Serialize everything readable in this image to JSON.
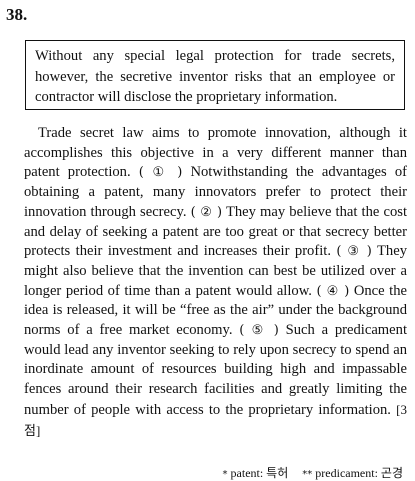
{
  "question": {
    "number": "38."
  },
  "given_sentence": "Without any special legal protection for trade secrets, however, the secretive inventor risks that an employee or contractor will disclose the proprietary information.",
  "passage": {
    "segments": [
      "Trade secret law aims to promote innovation, although it accomplishes this objective in a very different manner than patent protection. ",
      " Notwithstanding the advantages of obtaining a patent, many innovators prefer to protect their innovation through secrecy. ",
      " They may believe that the cost and delay of seeking a patent are too great or that secrecy better protects their investment and increases their profit. ",
      " They might also believe that the invention can best be utilized over a longer period of time than a patent would allow. ",
      " Once the idea is released, it will be “free as the air” under the background norms of a free market economy. ",
      " Such a predicament would lead any inventor seeking to rely upon secrecy to spend an inordinate amount of resources building high and impassable fences around their research facilities and greatly limiting the number of people with access to the proprietary information. "
    ],
    "markers": [
      "( ① )",
      "( ② )",
      "( ③ )",
      "( ④ )",
      "( ⑤ )"
    ],
    "points": "[3점]"
  },
  "footnotes": [
    {
      "mark": "*",
      "text": "patent: 특허"
    },
    {
      "mark": "**",
      "text": "predicament: 곤경"
    }
  ]
}
